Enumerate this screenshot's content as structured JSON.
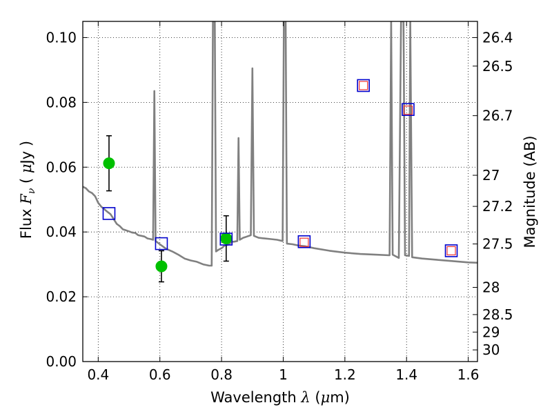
{
  "chart_data": {
    "type": "scatter",
    "xlabel": "Wavelength λ (μm)",
    "ylabel": "Flux F_ν ( μJy )",
    "y2label": "Magnitude (AB)",
    "xlim": [
      0.35,
      1.63
    ],
    "ylim": [
      0.0,
      0.105
    ],
    "grid": true,
    "legend": "none",
    "x_ticks": [
      0.4,
      0.6,
      0.8,
      1.0,
      1.2,
      1.4,
      1.6
    ],
    "x_tick_labels": [
      "0.4",
      "0.6",
      "0.8",
      "1",
      "1.2",
      "1.4",
      "1.6"
    ],
    "y_ticks": [
      0.0,
      0.02,
      0.04,
      0.06,
      0.08,
      0.1
    ],
    "y_tick_labels": [
      "0.00",
      "0.02",
      "0.04",
      "0.06",
      "0.08",
      "0.10"
    ],
    "mag_ticks": [
      {
        "label": "26.4",
        "flux": 0.1
      },
      {
        "label": "26.5",
        "flux": 0.0912
      },
      {
        "label": "26.7",
        "flux": 0.0759
      },
      {
        "label": "27",
        "flux": 0.0575
      },
      {
        "label": "27.2",
        "flux": 0.0479
      },
      {
        "label": "27.5",
        "flux": 0.0363
      },
      {
        "label": "28",
        "flux": 0.0229
      },
      {
        "label": "28.5",
        "flux": 0.0145
      },
      {
        "label": "29",
        "flux": 0.0091
      },
      {
        "label": "30",
        "flux": 0.0036
      }
    ],
    "series": [
      {
        "kind": "model-sed-line",
        "color": "#808080",
        "points": [
          [
            0.35,
            0.054
          ],
          [
            0.36,
            0.0535
          ],
          [
            0.37,
            0.0525
          ],
          [
            0.38,
            0.052
          ],
          [
            0.39,
            0.051
          ],
          [
            0.4,
            0.049
          ],
          [
            0.41,
            0.0478
          ],
          [
            0.42,
            0.047
          ],
          [
            0.43,
            0.0462
          ],
          [
            0.44,
            0.0455
          ],
          [
            0.45,
            0.044
          ],
          [
            0.46,
            0.0425
          ],
          [
            0.47,
            0.0418
          ],
          [
            0.48,
            0.0408
          ],
          [
            0.49,
            0.0405
          ],
          [
            0.5,
            0.0402
          ],
          [
            0.51,
            0.0398
          ],
          [
            0.52,
            0.0397
          ],
          [
            0.53,
            0.039
          ],
          [
            0.54,
            0.0388
          ],
          [
            0.55,
            0.0386
          ],
          [
            0.56,
            0.038
          ],
          [
            0.57,
            0.0378
          ],
          [
            0.578,
            0.0376
          ],
          [
            0.582,
            0.0835
          ],
          [
            0.586,
            0.0372
          ],
          [
            0.6,
            0.0362
          ],
          [
            0.62,
            0.0348
          ],
          [
            0.64,
            0.034
          ],
          [
            0.66,
            0.033
          ],
          [
            0.68,
            0.0318
          ],
          [
            0.7,
            0.0312
          ],
          [
            0.72,
            0.0308
          ],
          [
            0.74,
            0.03
          ],
          [
            0.76,
            0.0296
          ],
          [
            0.768,
            0.0296
          ],
          [
            0.772,
            0.105
          ],
          [
            0.778,
            0.105
          ],
          [
            0.782,
            0.034
          ],
          [
            0.79,
            0.0345
          ],
          [
            0.8,
            0.035
          ],
          [
            0.81,
            0.0358
          ],
          [
            0.82,
            0.036
          ],
          [
            0.835,
            0.037
          ],
          [
            0.84,
            0.037
          ],
          [
            0.851,
            0.0372
          ],
          [
            0.855,
            0.069
          ],
          [
            0.859,
            0.0376
          ],
          [
            0.87,
            0.0382
          ],
          [
            0.88,
            0.0385
          ],
          [
            0.895,
            0.039
          ],
          [
            0.9,
            0.0905
          ],
          [
            0.905,
            0.0388
          ],
          [
            0.92,
            0.0382
          ],
          [
            0.94,
            0.038
          ],
          [
            0.96,
            0.0378
          ],
          [
            0.98,
            0.0376
          ],
          [
            0.998,
            0.0372
          ],
          [
            1.002,
            0.105
          ],
          [
            1.008,
            0.105
          ],
          [
            1.012,
            0.0364
          ],
          [
            1.03,
            0.0362
          ],
          [
            1.05,
            0.0358
          ],
          [
            1.07,
            0.0356
          ],
          [
            1.1,
            0.035
          ],
          [
            1.15,
            0.0342
          ],
          [
            1.2,
            0.0336
          ],
          [
            1.25,
            0.0332
          ],
          [
            1.3,
            0.033
          ],
          [
            1.345,
            0.0328
          ],
          [
            1.35,
            0.105
          ],
          [
            1.355,
            0.033
          ],
          [
            1.375,
            0.032
          ],
          [
            1.382,
            0.105
          ],
          [
            1.39,
            0.105
          ],
          [
            1.395,
            0.0328
          ],
          [
            1.408,
            0.0326
          ],
          [
            1.412,
            0.105
          ],
          [
            1.418,
            0.0322
          ],
          [
            1.45,
            0.0318
          ],
          [
            1.5,
            0.0314
          ],
          [
            1.55,
            0.031
          ],
          [
            1.6,
            0.0306
          ],
          [
            1.63,
            0.0305
          ]
        ]
      },
      {
        "kind": "observed-flux-circles",
        "color": "#00c000",
        "points": [
          {
            "x": 0.435,
            "y": 0.0612,
            "err": 0.0085
          },
          {
            "x": 0.605,
            "y": 0.0294,
            "err": 0.0048
          },
          {
            "x": 0.815,
            "y": 0.038,
            "err": 0.007
          }
        ]
      },
      {
        "kind": "model-flux-squares",
        "color": "#0000cc",
        "points": [
          {
            "x": 0.435,
            "y": 0.0457
          },
          {
            "x": 0.605,
            "y": 0.0364
          },
          {
            "x": 0.815,
            "y": 0.0378
          },
          {
            "x": 1.068,
            "y": 0.037
          },
          {
            "x": 1.26,
            "y": 0.0852
          },
          {
            "x": 1.405,
            "y": 0.0778
          },
          {
            "x": 1.545,
            "y": 0.0342
          }
        ]
      },
      {
        "kind": "predicted-flux-small-squares",
        "color": "#ee3333",
        "points": [
          {
            "x": 1.068,
            "y": 0.0368
          },
          {
            "x": 1.26,
            "y": 0.0852
          },
          {
            "x": 1.405,
            "y": 0.0776
          },
          {
            "x": 1.545,
            "y": 0.0342
          }
        ]
      }
    ]
  }
}
